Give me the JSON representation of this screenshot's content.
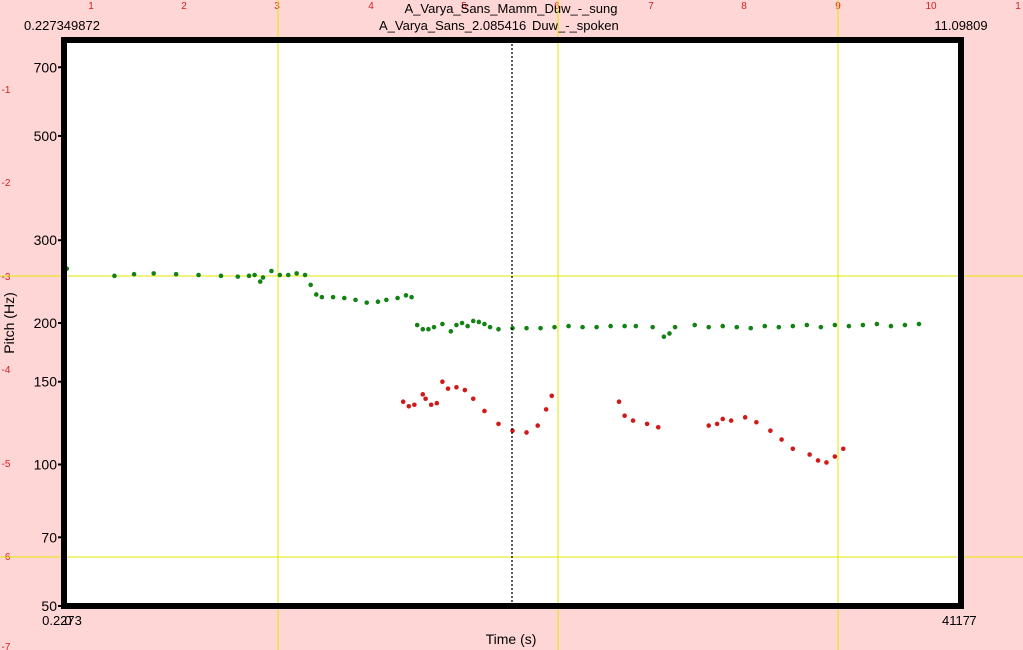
{
  "header": {
    "title_sung": "A_Varya_Sans_Mamm_Duw_-_sung",
    "title_spoken_left": "A_Varya_Sans_",
    "title_spoken_overlap": "2.085416",
    "title_spoken_right": "Duw_-_spoken",
    "time_left": "0.227349872",
    "time_right": "11.09809",
    "cursor_time": "2.085416"
  },
  "bottom": {
    "left_overlap_a": "0.2273",
    "left_overlap_b": "0",
    "right_overlap_a": "4117",
    "right_overlap_b": "7"
  },
  "colors": {
    "background": "#ffd6d6",
    "sung": "#128212",
    "spoken": "#d01a1a",
    "grid": "#e6e600",
    "ruler": "#d62020",
    "frame": "#000000"
  },
  "chart_data": {
    "type": "scatter",
    "xlabel": "Time (s)",
    "ylabel": "Pitch (Hz)",
    "yscale": "log",
    "ylim": [
      50,
      800
    ],
    "yticks": [
      50,
      70,
      100,
      150,
      200,
      300,
      500,
      700
    ],
    "top_ruler_labels": [
      "1",
      "2",
      "3",
      "4",
      "5",
      "6",
      "7",
      "8",
      "9",
      "10",
      "1"
    ],
    "left_ruler_labels": [
      "-1",
      "-2",
      "-3",
      "-4",
      "-5",
      "-6",
      "-7"
    ],
    "series": [
      {
        "color": "#128212",
        "points": [
          [
            0.0,
            261
          ],
          [
            0.01,
            261
          ],
          [
            0.18,
            252
          ],
          [
            0.25,
            254
          ],
          [
            0.32,
            255
          ],
          [
            0.4,
            254
          ],
          [
            0.48,
            253
          ],
          [
            0.56,
            252
          ],
          [
            0.62,
            251
          ],
          [
            0.66,
            252
          ],
          [
            0.68,
            253
          ],
          [
            0.7,
            245
          ],
          [
            0.71,
            250
          ],
          [
            0.74,
            258
          ],
          [
            0.77,
            253
          ],
          [
            0.8,
            253
          ],
          [
            0.83,
            255
          ],
          [
            0.86,
            253
          ],
          [
            0.88,
            241
          ],
          [
            0.9,
            230
          ],
          [
            0.92,
            227
          ],
          [
            0.96,
            227
          ],
          [
            1.0,
            226
          ],
          [
            1.04,
            224
          ],
          [
            1.08,
            221
          ],
          [
            1.12,
            222
          ],
          [
            1.15,
            224
          ],
          [
            1.19,
            226
          ],
          [
            1.22,
            229
          ],
          [
            1.24,
            227
          ],
          [
            1.26,
            198
          ],
          [
            1.28,
            194
          ],
          [
            1.3,
            194
          ],
          [
            1.32,
            196
          ],
          [
            1.35,
            199
          ],
          [
            1.38,
            192
          ],
          [
            1.4,
            198
          ],
          [
            1.42,
            200
          ],
          [
            1.44,
            197
          ],
          [
            1.46,
            202
          ],
          [
            1.48,
            201
          ],
          [
            1.5,
            199
          ],
          [
            1.52,
            196
          ],
          [
            1.55,
            194
          ],
          [
            1.6,
            195
          ],
          [
            1.65,
            195
          ],
          [
            1.7,
            195
          ],
          [
            1.75,
            196
          ],
          [
            1.8,
            197
          ],
          [
            1.85,
            196
          ],
          [
            1.9,
            196
          ],
          [
            1.95,
            197
          ],
          [
            2.0,
            197
          ],
          [
            2.04,
            197
          ],
          [
            2.1,
            196
          ],
          [
            2.14,
            187
          ],
          [
            2.16,
            190
          ],
          [
            2.18,
            196
          ],
          [
            2.25,
            198
          ],
          [
            2.3,
            196
          ],
          [
            2.35,
            197
          ],
          [
            2.4,
            196
          ],
          [
            2.45,
            195
          ],
          [
            2.5,
            197
          ],
          [
            2.55,
            196
          ],
          [
            2.6,
            197
          ],
          [
            2.65,
            198
          ],
          [
            2.7,
            196
          ],
          [
            2.75,
            198
          ],
          [
            2.8,
            197
          ],
          [
            2.85,
            198
          ],
          [
            2.9,
            199
          ],
          [
            2.95,
            197
          ],
          [
            3.0,
            198
          ],
          [
            3.05,
            199
          ]
        ]
      },
      {
        "color": "#d01a1a",
        "points": [
          [
            1.21,
            136
          ],
          [
            1.23,
            133
          ],
          [
            1.25,
            134
          ],
          [
            1.28,
            141
          ],
          [
            1.29,
            138
          ],
          [
            1.31,
            134
          ],
          [
            1.33,
            135
          ],
          [
            1.35,
            150
          ],
          [
            1.37,
            145
          ],
          [
            1.4,
            146
          ],
          [
            1.43,
            144
          ],
          [
            1.46,
            138
          ],
          [
            1.5,
            130
          ],
          [
            1.55,
            122
          ],
          [
            1.6,
            118
          ],
          [
            1.65,
            117
          ],
          [
            1.69,
            121
          ],
          [
            1.72,
            131
          ],
          [
            1.74,
            140
          ],
          [
            1.98,
            136
          ],
          [
            2.0,
            127
          ],
          [
            2.03,
            124
          ],
          [
            2.08,
            122
          ],
          [
            2.12,
            120
          ],
          [
            2.3,
            121
          ],
          [
            2.33,
            122
          ],
          [
            2.35,
            125
          ],
          [
            2.38,
            124
          ],
          [
            2.43,
            126
          ],
          [
            2.47,
            123
          ],
          [
            2.52,
            118
          ],
          [
            2.56,
            113
          ],
          [
            2.6,
            108
          ],
          [
            2.66,
            105
          ],
          [
            2.69,
            102
          ],
          [
            2.72,
            101
          ],
          [
            2.75,
            104
          ],
          [
            2.78,
            108
          ]
        ]
      }
    ]
  }
}
